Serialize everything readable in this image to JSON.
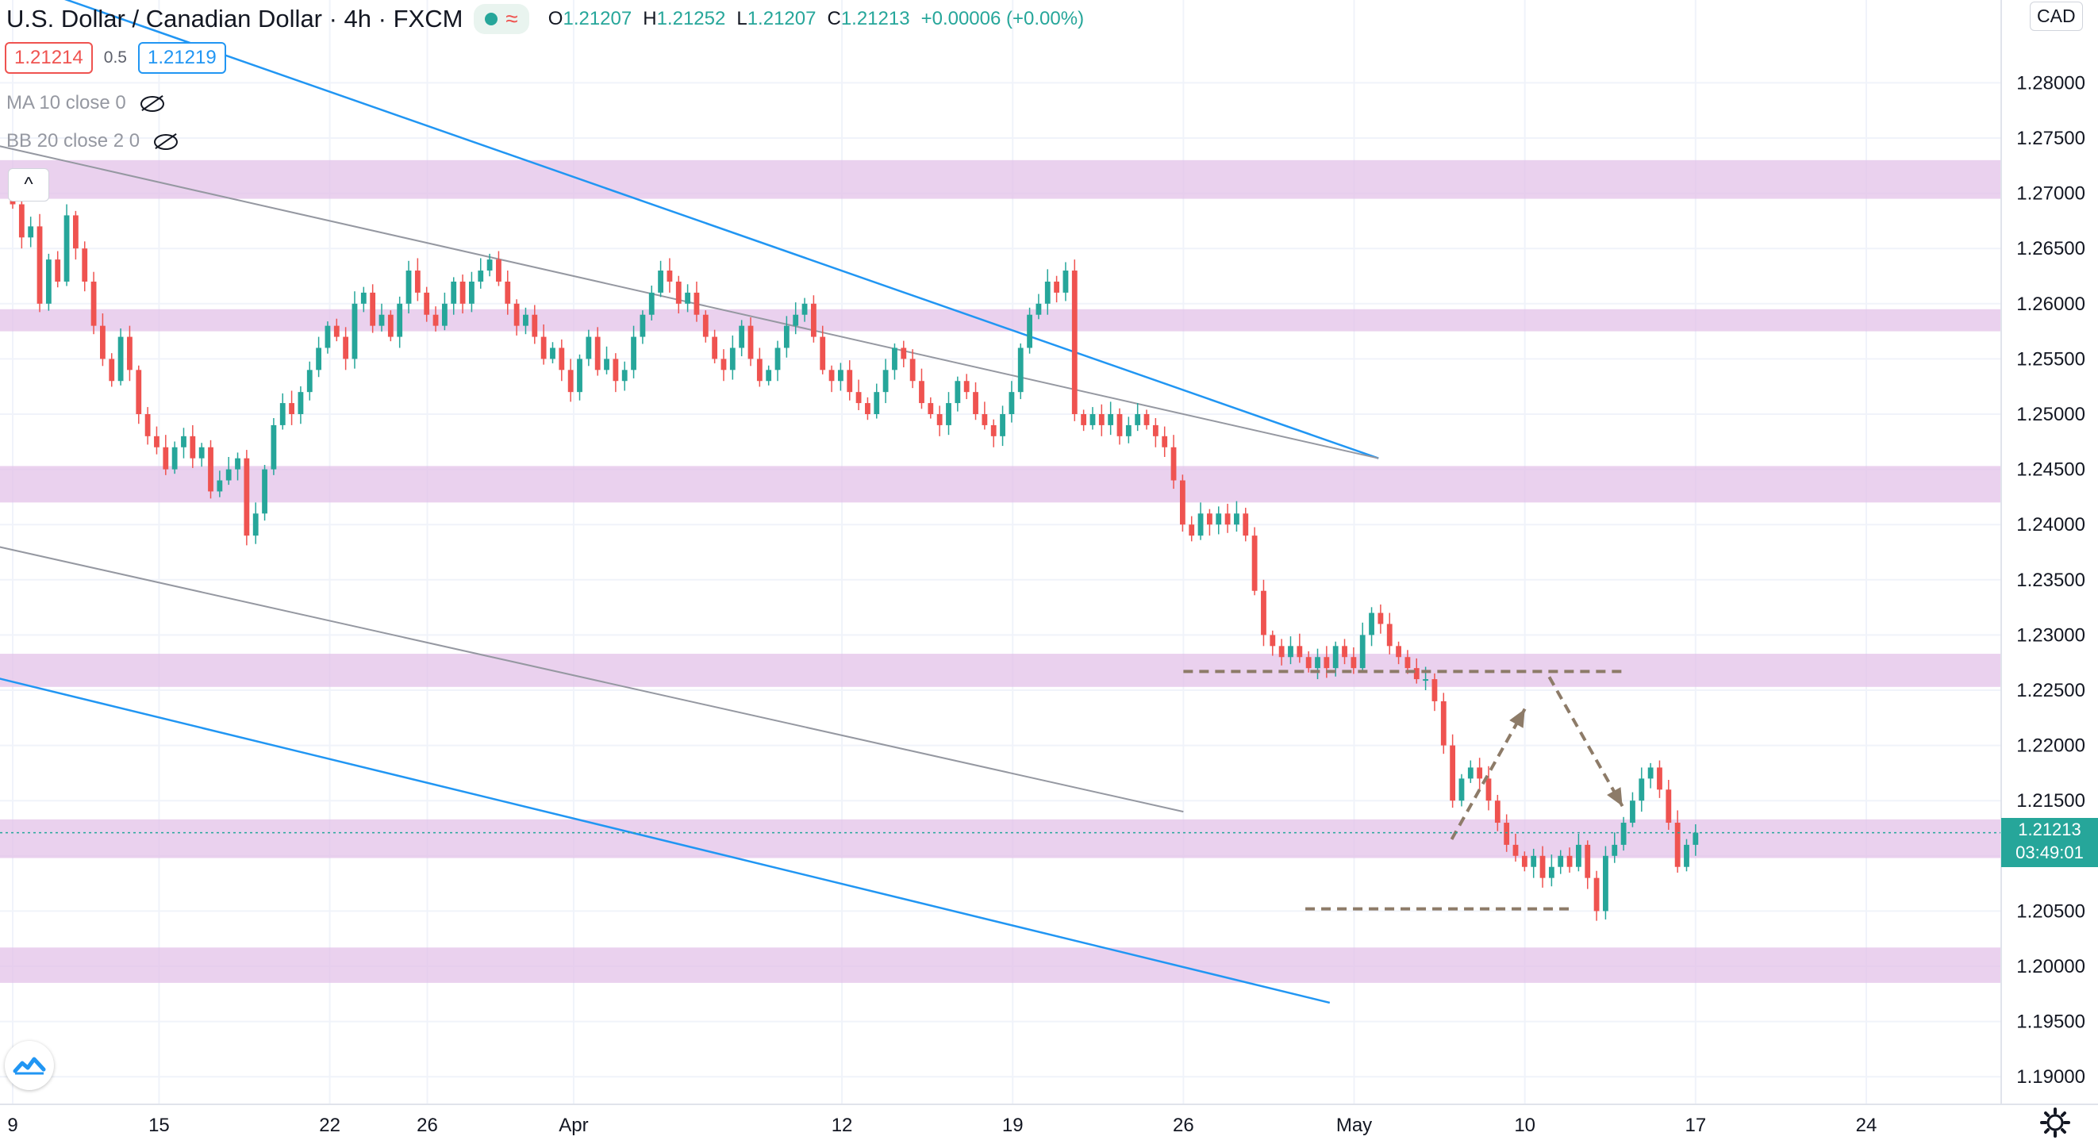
{
  "header": {
    "symbol": "U.S. Dollar / Canadian Dollar · 4h · FXCM",
    "ohlc": {
      "open_label": "O",
      "open": "1.21207",
      "high_label": "H",
      "high": "1.21252",
      "low_label": "L",
      "low": "1.21207",
      "close_label": "C",
      "close": "1.21213",
      "change": "+0.00006 (+0.00%)"
    }
  },
  "quote": {
    "bid": "1.21214",
    "spread": "0.5",
    "ask": "1.21219"
  },
  "indicators": [
    {
      "label": "MA 10 close 0",
      "icon": "eye-hidden-icon"
    },
    {
      "label": "BB 20 close 2 0",
      "icon": "eye-hidden-icon"
    }
  ],
  "controls": {
    "collapse_glyph": "^",
    "currency": "CAD"
  },
  "last_price": {
    "price": "1.21213",
    "countdown": "03:49:01"
  },
  "colors": {
    "up": "#26a69a",
    "down": "#ef5350",
    "zone": "#e1bee7",
    "channel": "#2196f3",
    "midline": "#9598a1",
    "projection": "#8d7b68"
  },
  "chart_data": {
    "type": "candlestick",
    "title": "U.S. Dollar / Canadian Dollar · 4h · FXCM",
    "ylim": [
      1.1875,
      1.2875
    ],
    "y_ticks": [
      "1.28000",
      "1.27500",
      "1.27000",
      "1.26500",
      "1.26000",
      "1.25500",
      "1.25000",
      "1.24500",
      "1.24000",
      "1.23500",
      "1.23000",
      "1.22500",
      "1.22000",
      "1.21500",
      "1.21000",
      "1.20500",
      "1.20000",
      "1.19500",
      "1.19000"
    ],
    "x_ticks": [
      "9",
      "15",
      "22",
      "26",
      "Apr",
      "12",
      "19",
      "26",
      "May",
      "10",
      "17",
      "24"
    ],
    "x_range_days": [
      0,
      76
    ],
    "x_tick_days": [
      0,
      6,
      13,
      17,
      23,
      34,
      41,
      48,
      55,
      62,
      69,
      76
    ],
    "closes": [
      1.269,
      1.266,
      1.267,
      1.26,
      1.264,
      1.262,
      1.268,
      1.265,
      1.262,
      1.258,
      1.255,
      1.253,
      1.257,
      1.254,
      1.25,
      1.248,
      1.247,
      1.245,
      1.247,
      1.248,
      1.246,
      1.247,
      1.243,
      1.244,
      1.245,
      1.246,
      1.239,
      1.241,
      1.245,
      1.249,
      1.251,
      1.25,
      1.252,
      1.254,
      1.256,
      1.258,
      1.257,
      1.255,
      1.26,
      1.261,
      1.258,
      1.259,
      1.257,
      1.26,
      1.263,
      1.261,
      1.259,
      1.258,
      1.26,
      1.262,
      1.26,
      1.262,
      1.263,
      1.264,
      1.262,
      1.26,
      1.258,
      1.259,
      1.257,
      1.255,
      1.256,
      1.254,
      1.252,
      1.255,
      1.257,
      1.254,
      1.255,
      1.253,
      1.254,
      1.257,
      1.259,
      1.261,
      1.263,
      1.262,
      1.26,
      1.261,
      1.259,
      1.257,
      1.255,
      1.254,
      1.256,
      1.258,
      1.255,
      1.253,
      1.254,
      1.256,
      1.258,
      1.259,
      1.26,
      1.257,
      1.254,
      1.253,
      1.254,
      1.252,
      1.251,
      1.25,
      1.252,
      1.254,
      1.256,
      1.255,
      1.253,
      1.251,
      1.25,
      1.249,
      1.251,
      1.253,
      1.252,
      1.25,
      1.249,
      1.248,
      1.25,
      1.252,
      1.256,
      1.259,
      1.26,
      1.262,
      1.261,
      1.263,
      1.25,
      1.249,
      1.25,
      1.249,
      1.25,
      1.248,
      1.249,
      1.25,
      1.249,
      1.248,
      1.247,
      1.244,
      1.24,
      1.239,
      1.241,
      1.24,
      1.241,
      1.24,
      1.241,
      1.239,
      1.234,
      1.23,
      1.229,
      1.228,
      1.229,
      1.228,
      1.227,
      1.228,
      1.227,
      1.229,
      1.228,
      1.227,
      1.23,
      1.232,
      1.231,
      1.229,
      1.228,
      1.227,
      1.226,
      1.226,
      1.224,
      1.22,
      1.215,
      1.217,
      1.218,
      1.217,
      1.215,
      1.213,
      1.211,
      1.21,
      1.209,
      1.21,
      1.208,
      1.209,
      1.21,
      1.209,
      1.211,
      1.208,
      1.205,
      1.21,
      1.211,
      1.213,
      1.215,
      1.217,
      1.218,
      1.216,
      1.213,
      1.209,
      1.211,
      1.2121
    ],
    "zones": [
      {
        "low": 1.2695,
        "high": 1.273
      },
      {
        "low": 1.2575,
        "high": 1.2595
      },
      {
        "low": 1.242,
        "high": 1.2453
      },
      {
        "low": 1.2253,
        "high": 1.2283
      },
      {
        "low": 1.2098,
        "high": 1.2133
      },
      {
        "low": 1.1985,
        "high": 1.2017
      }
    ],
    "channel_upper": [
      [
        -1,
        1.29
      ],
      [
        56,
        1.246
      ]
    ],
    "channel_lower": [
      [
        -1,
        1.2263
      ],
      [
        54,
        1.1967
      ]
    ],
    "mid_lines": [
      [
        [
          -1,
          1.2745
        ],
        [
          56,
          1.246
        ]
      ],
      [
        [
          -1,
          1.2382
        ],
        [
          48,
          1.214
        ]
      ]
    ],
    "levels": [
      {
        "price": 1.2267,
        "from": 48,
        "to": 66
      },
      {
        "price": 1.2052,
        "from": 53,
        "to": 64
      }
    ],
    "projection": [
      [
        59,
        1.2115
      ],
      [
        62,
        1.2233
      ],
      [
        63,
        1.2262
      ],
      [
        66,
        1.2145
      ]
    ],
    "last_close": 1.2121
  }
}
